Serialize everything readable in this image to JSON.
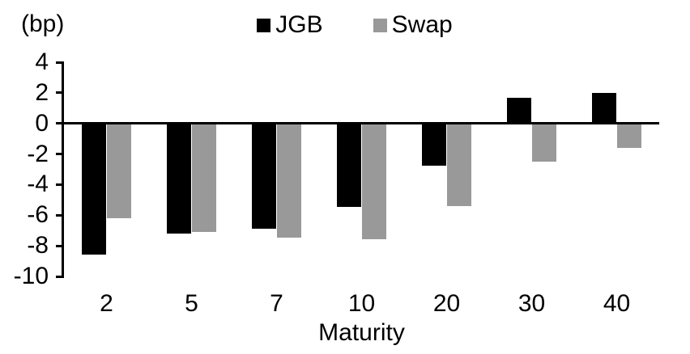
{
  "chart_data": {
    "type": "bar",
    "title": "",
    "unit_label": "(bp)",
    "xlabel": "Maturity",
    "ylabel": "",
    "categories": [
      "2",
      "5",
      "7",
      "10",
      "20",
      "30",
      "40"
    ],
    "series": [
      {
        "name": "JGB",
        "color": "#000000",
        "values": [
          -8.5,
          -7.1,
          -6.8,
          -5.4,
          -2.7,
          1.7,
          2.0
        ]
      },
      {
        "name": "Swap",
        "color": "#999999",
        "values": [
          -6.1,
          -7.0,
          -7.4,
          -7.5,
          -5.3,
          -2.4,
          -1.5
        ]
      }
    ],
    "yticks": [
      4,
      2,
      0,
      -2,
      -4,
      -6,
      -8,
      -10
    ],
    "ylim": [
      -10,
      4
    ],
    "legend_position": "top",
    "grid": false,
    "axis_color": "#000000",
    "background_color": "#ffffff"
  }
}
